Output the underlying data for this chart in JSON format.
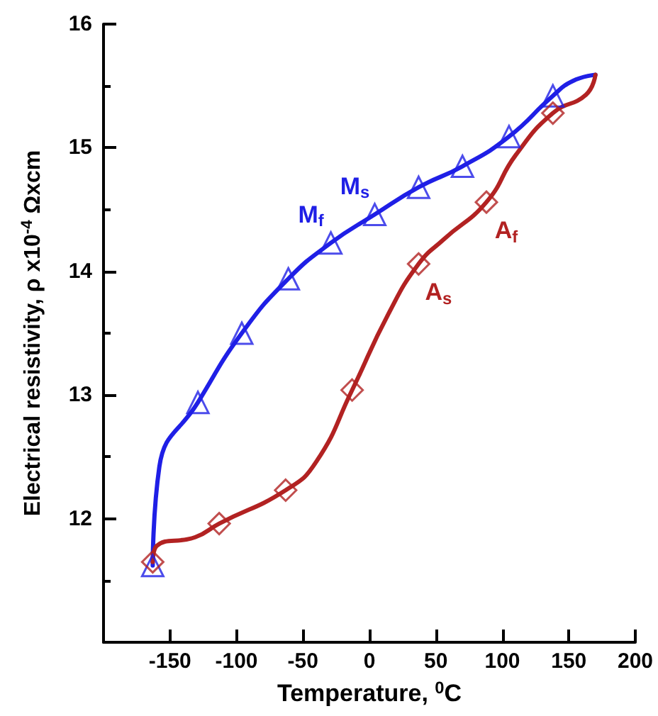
{
  "chart_data": {
    "type": "line",
    "xlabel": "Temperature, $^{0}$C",
    "ylabel": "Electrical resistivity, ρ x10$^{-4}$ Ωxcm",
    "xlim": [
      -200,
      200
    ],
    "xticks": [
      -150,
      -100,
      -50,
      0,
      50,
      100,
      150,
      200
    ],
    "ylim": [
      11,
      16
    ],
    "yticks": [
      12,
      13,
      14,
      15,
      16
    ],
    "grid": false,
    "series": [
      {
        "marker": "none",
        "color": "#1f1fe6",
        "x": [
          -163,
          -158,
          -129,
          -96,
          -61,
          -29,
          4,
          37,
          70,
          105,
          138,
          153,
          170
        ],
        "values": [
          11.62,
          12.42,
          12.94,
          13.5,
          13.94,
          14.23,
          14.46,
          14.68,
          14.85,
          15.09,
          15.42,
          15.54,
          15.59
        ]
      },
      {
        "type": "scatter",
        "marker": "triangle",
        "color": "#1f1fe6",
        "x": [
          -163,
          -129,
          -96,
          -61,
          -29,
          4,
          37,
          70,
          105,
          138
        ],
        "values": [
          11.62,
          12.94,
          13.5,
          13.94,
          14.23,
          14.46,
          14.68,
          14.85,
          15.09,
          15.42
        ]
      },
      {
        "marker": "none",
        "color": "#b22222",
        "x": [
          -163,
          -160,
          -131,
          -113,
          -63,
          -40,
          -13,
          14,
          37,
          56,
          88,
          110,
          138,
          163,
          170
        ],
        "values": [
          11.65,
          11.78,
          11.85,
          11.96,
          12.23,
          12.46,
          13.04,
          13.65,
          14.06,
          14.26,
          14.56,
          14.94,
          15.28,
          15.43,
          15.59
        ]
      },
      {
        "type": "scatter",
        "marker": "diamond",
        "color": "#b22222",
        "x": [
          -163,
          -113,
          -63,
          -13,
          37,
          88,
          138
        ],
        "values": [
          11.65,
          11.96,
          12.23,
          13.04,
          14.06,
          14.56,
          15.28
        ]
      }
    ],
    "annotations": [
      {
        "text": "M$_{f}$",
        "x": -29,
        "y": 14.23
      },
      {
        "text": "M$_{s}$",
        "x": 4,
        "y": 14.46
      },
      {
        "text": "A$_{f}$",
        "x": 88,
        "y": 14.56
      },
      {
        "text": "A$_{s}$",
        "x": 37,
        "y": 14.06
      }
    ]
  }
}
